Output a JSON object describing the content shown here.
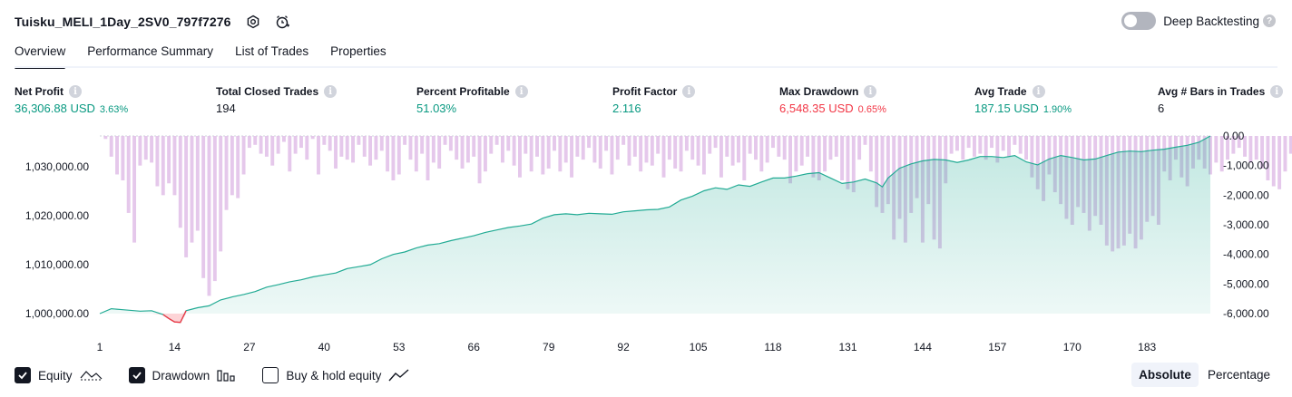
{
  "header": {
    "title": "Tuisku_MELI_1Day_2SV0_797f7276",
    "icons": [
      "settings-icon",
      "add-alert-icon"
    ]
  },
  "deep_backtesting": {
    "label": "Deep Backtesting",
    "enabled": false,
    "help": "?"
  },
  "tabs": [
    {
      "label": "Overview",
      "active": true
    },
    {
      "label": "Performance Summary",
      "active": false
    },
    {
      "label": "List of Trades",
      "active": false
    },
    {
      "label": "Properties",
      "active": false
    }
  ],
  "metrics": [
    {
      "label": "Net Profit",
      "value": "36,306.88 USD",
      "pct": "3.63%",
      "color": "#089981"
    },
    {
      "label": "Total Closed Trades",
      "value": "194",
      "pct": "",
      "color": "#131722"
    },
    {
      "label": "Percent Profitable",
      "value": "51.03%",
      "pct": "",
      "color": "#089981"
    },
    {
      "label": "Profit Factor",
      "value": "2.116",
      "pct": "",
      "color": "#089981"
    },
    {
      "label": "Max Drawdown",
      "value": "6,548.35 USD",
      "pct": "0.65%",
      "color": "#f23645"
    },
    {
      "label": "Avg Trade",
      "value": "187.15 USD",
      "pct": "1.90%",
      "color": "#089981"
    },
    {
      "label": "Avg # Bars in Trades",
      "value": "6",
      "pct": "",
      "color": "#131722"
    }
  ],
  "chart_data": {
    "type": "area",
    "x_ticks": [
      "1",
      "14",
      "27",
      "40",
      "53",
      "66",
      "79",
      "92",
      "105",
      "118",
      "131",
      "144",
      "157",
      "170",
      "183"
    ],
    "left_axis": {
      "ticks": [
        "1,030,000.00",
        "1,020,000.00",
        "1,010,000.00",
        "1,000,000.00"
      ],
      "ylim": [
        1000000,
        1036300
      ]
    },
    "right_axis": {
      "ticks": [
        "0.00",
        "-1,000.00",
        "-2,000.00",
        "-3,000.00",
        "-4,000.00",
        "-5,000.00",
        "-6,000.00"
      ],
      "ylim": [
        -6000,
        0
      ]
    },
    "grid": false,
    "series": [
      {
        "name": "Equity",
        "axis": "left",
        "color": "#22ab94",
        "points": [
          [
            1,
            1000000
          ],
          [
            3,
            1001000
          ],
          [
            5,
            1000800
          ],
          [
            8,
            1000500
          ],
          [
            10,
            1000600
          ],
          [
            12,
            999800
          ],
          [
            13,
            999000
          ],
          [
            14,
            998300
          ],
          [
            15,
            998200
          ],
          [
            16,
            1000600
          ],
          [
            18,
            1001200
          ],
          [
            20,
            1001600
          ],
          [
            22,
            1002800
          ],
          [
            24,
            1003400
          ],
          [
            26,
            1003900
          ],
          [
            28,
            1004500
          ],
          [
            30,
            1005400
          ],
          [
            32,
            1005900
          ],
          [
            34,
            1006500
          ],
          [
            36,
            1006900
          ],
          [
            38,
            1007500
          ],
          [
            40,
            1007900
          ],
          [
            42,
            1008300
          ],
          [
            44,
            1009200
          ],
          [
            46,
            1009600
          ],
          [
            48,
            1010000
          ],
          [
            50,
            1011200
          ],
          [
            52,
            1012100
          ],
          [
            54,
            1012600
          ],
          [
            56,
            1013400
          ],
          [
            58,
            1014000
          ],
          [
            60,
            1014300
          ],
          [
            62,
            1014900
          ],
          [
            64,
            1015400
          ],
          [
            66,
            1015900
          ],
          [
            68,
            1016600
          ],
          [
            70,
            1017100
          ],
          [
            72,
            1017600
          ],
          [
            74,
            1017900
          ],
          [
            76,
            1018300
          ],
          [
            78,
            1019500
          ],
          [
            80,
            1020200
          ],
          [
            82,
            1020400
          ],
          [
            84,
            1020200
          ],
          [
            86,
            1020500
          ],
          [
            88,
            1020400
          ],
          [
            90,
            1020300
          ],
          [
            92,
            1020800
          ],
          [
            94,
            1021000
          ],
          [
            96,
            1021200
          ],
          [
            98,
            1021300
          ],
          [
            100,
            1021800
          ],
          [
            102,
            1023200
          ],
          [
            104,
            1024000
          ],
          [
            106,
            1025100
          ],
          [
            108,
            1025700
          ],
          [
            110,
            1025400
          ],
          [
            112,
            1026300
          ],
          [
            114,
            1026000
          ],
          [
            116,
            1026900
          ],
          [
            118,
            1027700
          ],
          [
            120,
            1027700
          ],
          [
            122,
            1028100
          ],
          [
            124,
            1028600
          ],
          [
            126,
            1028800
          ],
          [
            128,
            1027700
          ],
          [
            130,
            1026600
          ],
          [
            132,
            1026900
          ],
          [
            134,
            1027500
          ],
          [
            136,
            1026700
          ],
          [
            137,
            1025900
          ],
          [
            138,
            1027700
          ],
          [
            140,
            1029700
          ],
          [
            142,
            1030600
          ],
          [
            144,
            1031200
          ],
          [
            146,
            1031500
          ],
          [
            148,
            1031400
          ],
          [
            150,
            1030900
          ],
          [
            152,
            1031400
          ],
          [
            154,
            1032100
          ],
          [
            156,
            1032100
          ],
          [
            158,
            1031900
          ],
          [
            160,
            1032300
          ],
          [
            162,
            1031000
          ],
          [
            164,
            1030400
          ],
          [
            166,
            1031600
          ],
          [
            168,
            1032300
          ],
          [
            170,
            1031900
          ],
          [
            172,
            1031400
          ],
          [
            174,
            1031600
          ],
          [
            176,
            1032300
          ],
          [
            178,
            1033000
          ],
          [
            180,
            1033200
          ],
          [
            182,
            1033100
          ],
          [
            184,
            1033400
          ],
          [
            186,
            1033600
          ],
          [
            188,
            1034000
          ],
          [
            190,
            1034400
          ],
          [
            192,
            1035000
          ],
          [
            194,
            1036300
          ]
        ]
      },
      {
        "name": "Drawdown",
        "axis": "right",
        "color": "#ce93d8",
        "values": [
          0,
          -100,
          -700,
          -1300,
          -1500,
          -2600,
          -3600,
          -1000,
          -800,
          -900,
          -1700,
          -2000,
          -1600,
          -2000,
          -3100,
          -4100,
          -3600,
          -3200,
          -4800,
          -5400,
          -4900,
          -3900,
          -2500,
          -2000,
          -2100,
          -1300,
          -400,
          -300,
          -600,
          -700,
          -1000,
          -600,
          -200,
          -1200,
          -600,
          -400,
          -800,
          -100,
          -1300,
          -300,
          -500,
          -1100,
          -700,
          -800,
          -900,
          -300,
          -700,
          -1000,
          -800,
          -500,
          -1200,
          -1500,
          -1300,
          -300,
          -800,
          -1200,
          -600,
          -1500,
          -900,
          -1100,
          -300,
          -500,
          -800,
          -1100,
          -900,
          -700,
          -1600,
          -1200,
          -600,
          -300,
          -900,
          -500,
          -1000,
          -1400,
          -600,
          -1200,
          -700,
          -1300,
          -1100,
          -500,
          -1200,
          -900,
          -1400,
          -700,
          -800,
          -400,
          -900,
          -1100,
          -500,
          -1300,
          -800,
          -300,
          -1000,
          -700,
          -1200,
          -900,
          -1000,
          -600,
          -1400,
          -800,
          -1100,
          -1200,
          -500,
          -800,
          -1000,
          -1300,
          -600,
          -400,
          -1400,
          -700,
          -1000,
          -900,
          -1500,
          -600,
          -800,
          -1200,
          -900,
          -400,
          -700,
          -800,
          -1600,
          -1200,
          -1000,
          -700,
          -1400,
          -1500,
          -1200,
          -800,
          -700,
          -1500,
          -1800,
          -1900,
          -800,
          -300,
          -1200,
          -2400,
          -2600,
          -2300,
          -3500,
          -2800,
          -3600,
          -2600,
          -2100,
          -3600,
          -2300,
          -3500,
          -3800,
          -1600,
          -600,
          -500,
          -800,
          -400,
          -700,
          -600,
          -800,
          -400,
          -900,
          -500,
          -700,
          -300,
          -600,
          -800,
          -1400,
          -1800,
          -2200,
          -1300,
          -1900,
          -2300,
          -2800,
          -3000,
          -2400,
          -2600,
          -3200,
          -2700,
          -3000,
          -3700,
          -3900,
          -3800,
          -3700,
          -3300,
          -3800,
          -3500,
          -2900,
          -2700,
          -3000,
          -1200,
          -1500,
          -800,
          -1400,
          -1700,
          -1100,
          -800,
          -1100,
          -1300,
          -900,
          -1200,
          -800,
          -600,
          -400,
          -700,
          -900,
          -800,
          -1100,
          -1500,
          -1700,
          -1800,
          -1200,
          -600,
          -300,
          -400,
          -800
        ]
      }
    ]
  },
  "legend": [
    {
      "label": "Equity",
      "checked": true,
      "glyph": "equity-line-icon"
    },
    {
      "label": "Drawdown",
      "checked": true,
      "glyph": "drawdown-bars-icon"
    },
    {
      "label": "Buy & hold equity",
      "checked": false,
      "glyph": "buy-hold-line-icon"
    }
  ],
  "mode": [
    {
      "label": "Absolute",
      "active": true
    },
    {
      "label": "Percentage",
      "active": false
    }
  ]
}
